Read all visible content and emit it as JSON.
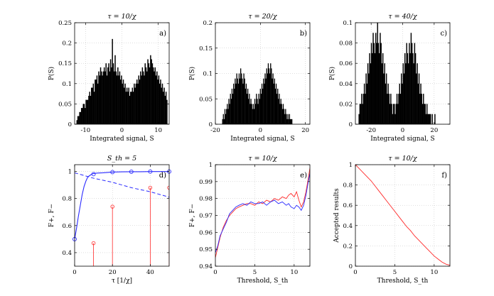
{
  "chart_data": [
    {
      "type": "bar",
      "panel": "a)",
      "title": "τ = 10/χ",
      "xlabel": "Integrated signal, S",
      "ylabel": "P(S)",
      "xlim": [
        -13,
        13
      ],
      "ylim": [
        0,
        0.25
      ],
      "xticks": [
        -10,
        0,
        10
      ],
      "yticks": [
        0,
        0.05,
        0.1,
        0.15,
        0.2,
        0.25
      ],
      "grid": true,
      "x_start": -12.5,
      "bin_width": 0.25,
      "values": [
        0.01,
        0.02,
        0.02,
        0.03,
        0.03,
        0.04,
        0.04,
        0.05,
        0.05,
        0.04,
        0.06,
        0.06,
        0.06,
        0.07,
        0.08,
        0.07,
        0.09,
        0.09,
        0.1,
        0.08,
        0.11,
        0.11,
        0.12,
        0.1,
        0.13,
        0.12,
        0.14,
        0.13,
        0.12,
        0.13,
        0.14,
        0.13,
        0.15,
        0.12,
        0.14,
        0.15,
        0.13,
        0.16,
        0.14,
        0.21,
        0.15,
        0.13,
        0.17,
        0.13,
        0.12,
        0.14,
        0.12,
        0.13,
        0.11,
        0.12,
        0.1,
        0.11,
        0.09,
        0.1,
        0.08,
        0.09,
        0.08,
        0.09,
        0.07,
        0.08,
        0.08,
        0.09,
        0.08,
        0.1,
        0.09,
        0.1,
        0.11,
        0.1,
        0.12,
        0.11,
        0.13,
        0.12,
        0.14,
        0.13,
        0.12,
        0.15,
        0.14,
        0.13,
        0.16,
        0.15,
        0.14,
        0.17,
        0.16,
        0.15,
        0.14,
        0.13,
        0.14,
        0.12,
        0.13,
        0.11,
        0.12,
        0.1,
        0.11,
        0.09,
        0.1,
        0.08,
        0.09,
        0.07,
        0.08,
        0.06
      ]
    },
    {
      "type": "bar",
      "panel": "b)",
      "title": "τ = 20/χ",
      "xlabel": "Integrated signal, S",
      "ylabel": "P(S)",
      "xlim": [
        -20,
        22
      ],
      "ylim": [
        0,
        0.2
      ],
      "xticks": [
        -20,
        0,
        20
      ],
      "yticks": [
        0,
        0.05,
        0.1,
        0.15,
        0.2
      ],
      "grid": true,
      "x_start": -17,
      "bin_width": 0.35,
      "values": [
        0.01,
        0.02,
        0.01,
        0.03,
        0.02,
        0.03,
        0.04,
        0.03,
        0.05,
        0.04,
        0.06,
        0.05,
        0.07,
        0.06,
        0.08,
        0.07,
        0.09,
        0.08,
        0.1,
        0.09,
        0.08,
        0.1,
        0.09,
        0.11,
        0.1,
        0.09,
        0.08,
        0.1,
        0.09,
        0.07,
        0.08,
        0.06,
        0.07,
        0.05,
        0.06,
        0.04,
        0.05,
        0.04,
        0.03,
        0.04,
        0.03,
        0.05,
        0.04,
        0.06,
        0.05,
        0.04,
        0.06,
        0.05,
        0.07,
        0.06,
        0.08,
        0.07,
        0.09,
        0.08,
        0.1,
        0.09,
        0.11,
        0.1,
        0.12,
        0.11,
        0.1,
        0.12,
        0.11,
        0.09,
        0.1,
        0.08,
        0.09,
        0.07,
        0.08,
        0.06,
        0.07,
        0.05,
        0.06,
        0.04,
        0.05,
        0.04,
        0.03,
        0.04,
        0.03,
        0.02,
        0.03,
        0.02,
        0.01,
        0.02,
        0.01,
        0.02,
        0.01,
        0.01,
        0.01,
        0.0
      ]
    },
    {
      "type": "bar",
      "panel": "c)",
      "title": "τ = 40/χ",
      "xlabel": "Integrated signal, S",
      "ylabel": "P(S)",
      "xlim": [
        -30,
        30
      ],
      "ylim": [
        0,
        0.1
      ],
      "xticks": [
        -20,
        0,
        20
      ],
      "yticks": [
        0,
        0.02,
        0.04,
        0.06,
        0.08,
        0.1
      ],
      "grid": true,
      "x_start": -28,
      "bin_width": 0.56,
      "values": [
        0.01,
        0.02,
        0.02,
        0.03,
        0.02,
        0.03,
        0.04,
        0.03,
        0.05,
        0.04,
        0.06,
        0.05,
        0.07,
        0.06,
        0.08,
        0.07,
        0.09,
        0.08,
        0.07,
        0.09,
        0.08,
        0.1,
        0.08,
        0.07,
        0.09,
        0.08,
        0.06,
        0.07,
        0.05,
        0.06,
        0.04,
        0.05,
        0.03,
        0.04,
        0.03,
        0.02,
        0.03,
        0.02,
        0.01,
        0.02,
        0.02,
        0.01,
        0.02,
        0.03,
        0.02,
        0.03,
        0.04,
        0.03,
        0.05,
        0.04,
        0.06,
        0.05,
        0.07,
        0.06,
        0.08,
        0.07,
        0.06,
        0.08,
        0.07,
        0.09,
        0.08,
        0.07,
        0.06,
        0.08,
        0.07,
        0.05,
        0.06,
        0.04,
        0.05,
        0.03,
        0.04,
        0.03,
        0.02,
        0.03,
        0.02,
        0.02,
        0.01,
        0.02,
        0.01,
        0.01,
        0.01,
        0.01,
        0.0,
        0.01,
        0.0,
        0.0,
        0.01,
        0.0,
        0.0,
        0.0
      ]
    },
    {
      "type": "line",
      "panel": "d)",
      "title": "S_th = 5",
      "xlabel": "τ [1/χ]",
      "ylabel": "F+, F−",
      "xlim": [
        0,
        50
      ],
      "ylim": [
        0.3,
        1.05
      ],
      "xticks": [
        0,
        20,
        40
      ],
      "yticks": [
        0.4,
        0.6,
        0.8,
        1
      ],
      "grid": true,
      "solid_blue": {
        "x": [
          0,
          1,
          2,
          3,
          4,
          5,
          6,
          7,
          8,
          9,
          10,
          12,
          15,
          20,
          25,
          30,
          35,
          40,
          45,
          50
        ],
        "y": [
          0.5,
          0.58,
          0.67,
          0.75,
          0.83,
          0.89,
          0.93,
          0.96,
          0.97,
          0.98,
          0.985,
          0.988,
          0.99,
          0.995,
          0.997,
          0.998,
          0.998,
          0.999,
          0.999,
          0.999
        ]
      },
      "dashed_blue": {
        "x": [
          0,
          10,
          20,
          30,
          40,
          50
        ],
        "y": [
          0.99,
          0.95,
          0.92,
          0.88,
          0.85,
          0.81
        ]
      },
      "blue_markers": {
        "x": [
          0,
          10,
          20,
          30,
          40,
          50
        ],
        "y": [
          0.5,
          0.98,
          0.995,
          0.998,
          0.999,
          0.999
        ]
      },
      "red_stems": {
        "x": [
          10,
          20,
          40,
          50
        ],
        "y": [
          0.47,
          0.74,
          0.88,
          0.88
        ]
      }
    },
    {
      "type": "line",
      "panel": "e)",
      "title": "τ = 10/χ",
      "xlabel": "Threshold, S_th",
      "ylabel": "F+, F−",
      "xlim": [
        0,
        12
      ],
      "ylim": [
        0.94,
        1
      ],
      "xticks": [
        0,
        5,
        10
      ],
      "yticks": [
        0.94,
        0.95,
        0.96,
        0.97,
        0.98,
        0.99,
        1
      ],
      "grid": true,
      "series": [
        {
          "color": "#ff2a2a",
          "x": [
            0,
            0.3,
            0.6,
            1,
            1.4,
            1.8,
            2.2,
            2.6,
            3,
            3.5,
            4,
            4.5,
            5,
            5.5,
            6,
            6.5,
            7,
            7.5,
            8,
            8.5,
            9,
            9.3,
            9.6,
            10,
            10.3,
            10.6,
            10.9,
            11.2,
            11.5,
            11.8,
            12
          ],
          "y": [
            0.945,
            0.951,
            0.957,
            0.963,
            0.967,
            0.97,
            0.972,
            0.974,
            0.975,
            0.976,
            0.977,
            0.977,
            0.976,
            0.978,
            0.977,
            0.979,
            0.978,
            0.98,
            0.979,
            0.981,
            0.98,
            0.982,
            0.983,
            0.981,
            0.984,
            0.979,
            0.975,
            0.978,
            0.984,
            0.992,
            0.998
          ]
        },
        {
          "color": "#2a2aff",
          "x": [
            0,
            0.3,
            0.6,
            1,
            1.4,
            1.8,
            2.2,
            2.6,
            3,
            3.5,
            4,
            4.5,
            5,
            5.5,
            6,
            6.5,
            7,
            7.5,
            8,
            8.5,
            9,
            9.3,
            9.6,
            10,
            10.3,
            10.6,
            10.9,
            11.2,
            11.5,
            11.8,
            12
          ],
          "y": [
            0.948,
            0.952,
            0.958,
            0.962,
            0.966,
            0.971,
            0.973,
            0.975,
            0.976,
            0.977,
            0.976,
            0.978,
            0.977,
            0.977,
            0.978,
            0.976,
            0.978,
            0.979,
            0.977,
            0.978,
            0.976,
            0.977,
            0.975,
            0.974,
            0.976,
            0.975,
            0.973,
            0.976,
            0.982,
            0.99,
            0.995
          ]
        }
      ]
    },
    {
      "type": "line",
      "panel": "f)",
      "title": "τ = 10/χ",
      "xlabel": "Threshold, S_th",
      "ylabel": "Accepted results",
      "xlim": [
        0,
        12
      ],
      "ylim": [
        0,
        1
      ],
      "xticks": [
        0,
        5,
        10
      ],
      "yticks": [
        0,
        0.2,
        0.4,
        0.6,
        0.8,
        1
      ],
      "grid": true,
      "series": [
        {
          "color": "#ff2a2a",
          "x": [
            0,
            0.5,
            1,
            1.5,
            2,
            2.5,
            3,
            3.5,
            4,
            4.5,
            5,
            5.5,
            6,
            6.5,
            7,
            7.5,
            8,
            8.5,
            9,
            9.5,
            10,
            10.5,
            11,
            11.5,
            12
          ],
          "y": [
            1,
            0.96,
            0.92,
            0.88,
            0.84,
            0.79,
            0.74,
            0.69,
            0.64,
            0.59,
            0.54,
            0.49,
            0.44,
            0.39,
            0.35,
            0.3,
            0.26,
            0.22,
            0.18,
            0.14,
            0.1,
            0.07,
            0.04,
            0.02,
            0.01
          ]
        }
      ]
    }
  ]
}
